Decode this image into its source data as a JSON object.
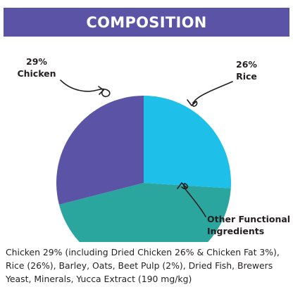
{
  "header": {
    "title": "COMPOSITION"
  },
  "colors": {
    "header_bg": "#5b54a6",
    "header_text": "#ffffff",
    "chicken": "#5b54a6",
    "rice": "#1ebfe8",
    "other": "#2ba69e"
  },
  "chart_data": {
    "type": "pie",
    "title": "",
    "slices": [
      {
        "name": "Rice",
        "value": 26,
        "label_lines": [
          "26%",
          "Rice"
        ],
        "color_key": "rice"
      },
      {
        "name": "Other Functional Ingredients",
        "value": 45,
        "label_lines": [
          "Other Functional",
          "Ingredients"
        ],
        "color_key": "other"
      },
      {
        "name": "Chicken",
        "value": 29,
        "label_lines": [
          "29%",
          "Chicken"
        ],
        "color_key": "chicken"
      }
    ]
  },
  "description": "Chicken 29% (including Dried Chicken 26% & Chicken Fat 3%), Rice (26%), Barley, Oats, Beet Pulp (2%), Dried Fish, Brewers Yeast, Minerals, Yucca Extract (190 mg/kg)"
}
